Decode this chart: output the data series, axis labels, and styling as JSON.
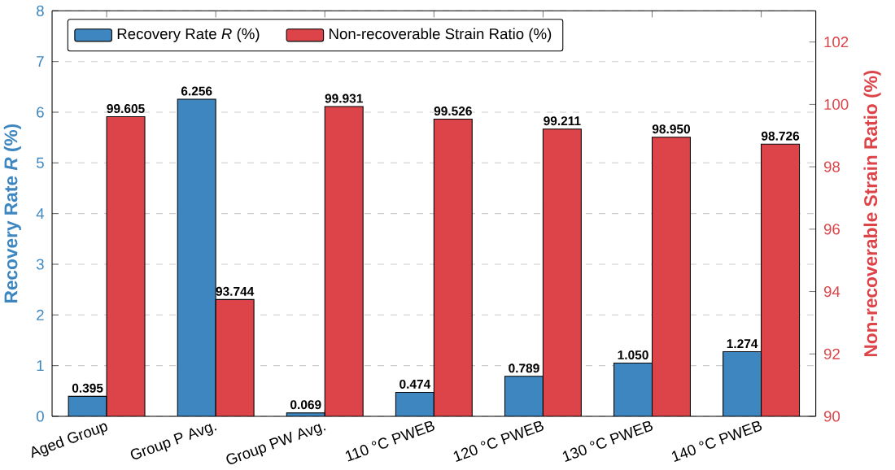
{
  "chart_data": {
    "type": "bar",
    "categories": [
      "Aged Group",
      "Group P Avg.",
      "Group PW Avg.",
      "110 °C PWEB",
      "120 °C PWEB",
      "130 °C PWEB",
      "140 °C PWEB"
    ],
    "series": [
      {
        "name": "Recovery Rate *R* (%)",
        "color": "#3d86c0",
        "values": [
          0.395,
          6.256,
          0.069,
          0.474,
          0.789,
          1.05,
          1.274
        ],
        "value_labels": [
          "0.395",
          "6.256",
          "0.069",
          "0.474",
          "0.789",
          "1.050",
          "1.274"
        ]
      },
      {
        "name": "Non-recoverable Strain Ratio (%)",
        "color": "#dc4449",
        "axis": "y2",
        "values": [
          99.605,
          93.744,
          99.931,
          99.526,
          99.211,
          98.95,
          98.726
        ],
        "value_labels": [
          "99.605",
          "93.744",
          "99.931",
          "99.526",
          "99.211",
          "98.950",
          "98.726"
        ]
      }
    ],
    "ylabel": "Recovery Rate *R* (%)",
    "y2label": "Non-recoverable Strain Ratio (%)",
    "ylim": [
      0,
      8
    ],
    "yticks": [
      0,
      1,
      2,
      3,
      4,
      5,
      6,
      7,
      8
    ],
    "y2lim": [
      90,
      103
    ],
    "y2ticks": [
      90,
      92,
      94,
      96,
      98,
      100,
      102
    ],
    "grid": "y",
    "legend": "top left"
  }
}
